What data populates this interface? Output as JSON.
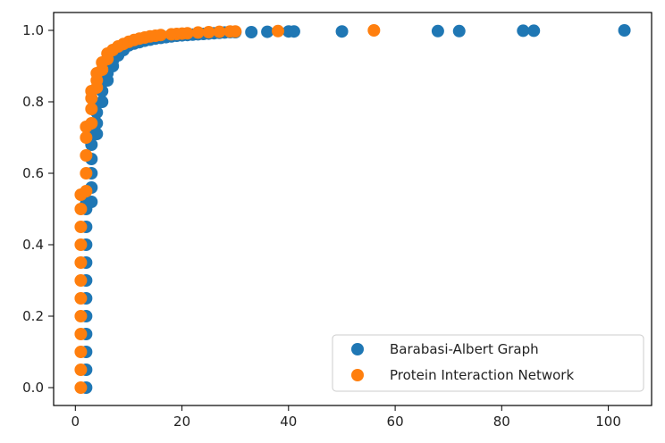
{
  "chart_data": {
    "type": "scatter",
    "title": "",
    "xlabel": "",
    "ylabel": "",
    "xlim": [
      -4.1,
      108.1
    ],
    "ylim": [
      -0.05,
      1.05
    ],
    "xticks": [
      0,
      20,
      40,
      60,
      80,
      100
    ],
    "xtick_labels": [
      "0",
      "20",
      "40",
      "60",
      "80",
      "100"
    ],
    "yticks": [
      0.0,
      0.2,
      0.4,
      0.6,
      0.8,
      1.0
    ],
    "ytick_labels": [
      "0.0",
      "0.2",
      "0.4",
      "0.6",
      "0.8",
      "1.0"
    ],
    "grid": false,
    "legend_position": "lower-right",
    "series": [
      {
        "name": "Barabasi-Albert Graph",
        "color": "#1f77b4",
        "points": [
          [
            2,
            0.0
          ],
          [
            2,
            0.05
          ],
          [
            2,
            0.1
          ],
          [
            2,
            0.15
          ],
          [
            2,
            0.2
          ],
          [
            2,
            0.25
          ],
          [
            2,
            0.3
          ],
          [
            2,
            0.35
          ],
          [
            2,
            0.4
          ],
          [
            2,
            0.45
          ],
          [
            2,
            0.5
          ],
          [
            2,
            0.515
          ],
          [
            3,
            0.52
          ],
          [
            3,
            0.56
          ],
          [
            3,
            0.6
          ],
          [
            3,
            0.64
          ],
          [
            3,
            0.68
          ],
          [
            3,
            0.705
          ],
          [
            4,
            0.71
          ],
          [
            4,
            0.74
          ],
          [
            4,
            0.77
          ],
          [
            4,
            0.795
          ],
          [
            5,
            0.8
          ],
          [
            5,
            0.83
          ],
          [
            5,
            0.855
          ],
          [
            6,
            0.86
          ],
          [
            6,
            0.88
          ],
          [
            6,
            0.895
          ],
          [
            7,
            0.9
          ],
          [
            7,
            0.915
          ],
          [
            7,
            0.925
          ],
          [
            8,
            0.93
          ],
          [
            8,
            0.94
          ],
          [
            9,
            0.945
          ],
          [
            9,
            0.952
          ],
          [
            10,
            0.958
          ],
          [
            11,
            0.963
          ],
          [
            12,
            0.967
          ],
          [
            13,
            0.971
          ],
          [
            14,
            0.974
          ],
          [
            15,
            0.977
          ],
          [
            16,
            0.979
          ],
          [
            17,
            0.981
          ],
          [
            18,
            0.983
          ],
          [
            19,
            0.985
          ],
          [
            20,
            0.986
          ],
          [
            21,
            0.987
          ],
          [
            22,
            0.988
          ],
          [
            23,
            0.989
          ],
          [
            24,
            0.99
          ],
          [
            25,
            0.991
          ],
          [
            26,
            0.992
          ],
          [
            27,
            0.993
          ],
          [
            28,
            0.994
          ],
          [
            29,
            0.995
          ],
          [
            30,
            0.995
          ],
          [
            33,
            0.995
          ],
          [
            36,
            0.996
          ],
          [
            40,
            0.997
          ],
          [
            41,
            0.997
          ],
          [
            50,
            0.997
          ],
          [
            68,
            0.998
          ],
          [
            72,
            0.998
          ],
          [
            84,
            0.999
          ],
          [
            86,
            0.999
          ],
          [
            103,
            1.0
          ]
        ]
      },
      {
        "name": "Protein Interaction Network",
        "color": "#ff7f0e",
        "points": [
          [
            1,
            0.0
          ],
          [
            1,
            0.05
          ],
          [
            1,
            0.1
          ],
          [
            1,
            0.15
          ],
          [
            1,
            0.2
          ],
          [
            1,
            0.25
          ],
          [
            1,
            0.3
          ],
          [
            1,
            0.35
          ],
          [
            1,
            0.4
          ],
          [
            1,
            0.45
          ],
          [
            1,
            0.5
          ],
          [
            1,
            0.54
          ],
          [
            2,
            0.55
          ],
          [
            2,
            0.6
          ],
          [
            2,
            0.65
          ],
          [
            2,
            0.7
          ],
          [
            2,
            0.73
          ],
          [
            3,
            0.74
          ],
          [
            3,
            0.78
          ],
          [
            3,
            0.81
          ],
          [
            3,
            0.83
          ],
          [
            4,
            0.84
          ],
          [
            4,
            0.86
          ],
          [
            4,
            0.88
          ],
          [
            5,
            0.89
          ],
          [
            5,
            0.91
          ],
          [
            6,
            0.92
          ],
          [
            6,
            0.935
          ],
          [
            7,
            0.945
          ],
          [
            8,
            0.955
          ],
          [
            9,
            0.962
          ],
          [
            10,
            0.968
          ],
          [
            11,
            0.973
          ],
          [
            12,
            0.977
          ],
          [
            13,
            0.98
          ],
          [
            14,
            0.983
          ],
          [
            15,
            0.985
          ],
          [
            16,
            0.987
          ],
          [
            18,
            0.989
          ],
          [
            19,
            0.99
          ],
          [
            20,
            0.991
          ],
          [
            21,
            0.992
          ],
          [
            23,
            0.994
          ],
          [
            25,
            0.995
          ],
          [
            27,
            0.996
          ],
          [
            29,
            0.997
          ],
          [
            30,
            0.997
          ],
          [
            38,
            0.998
          ],
          [
            56,
            1.0
          ]
        ]
      }
    ]
  }
}
